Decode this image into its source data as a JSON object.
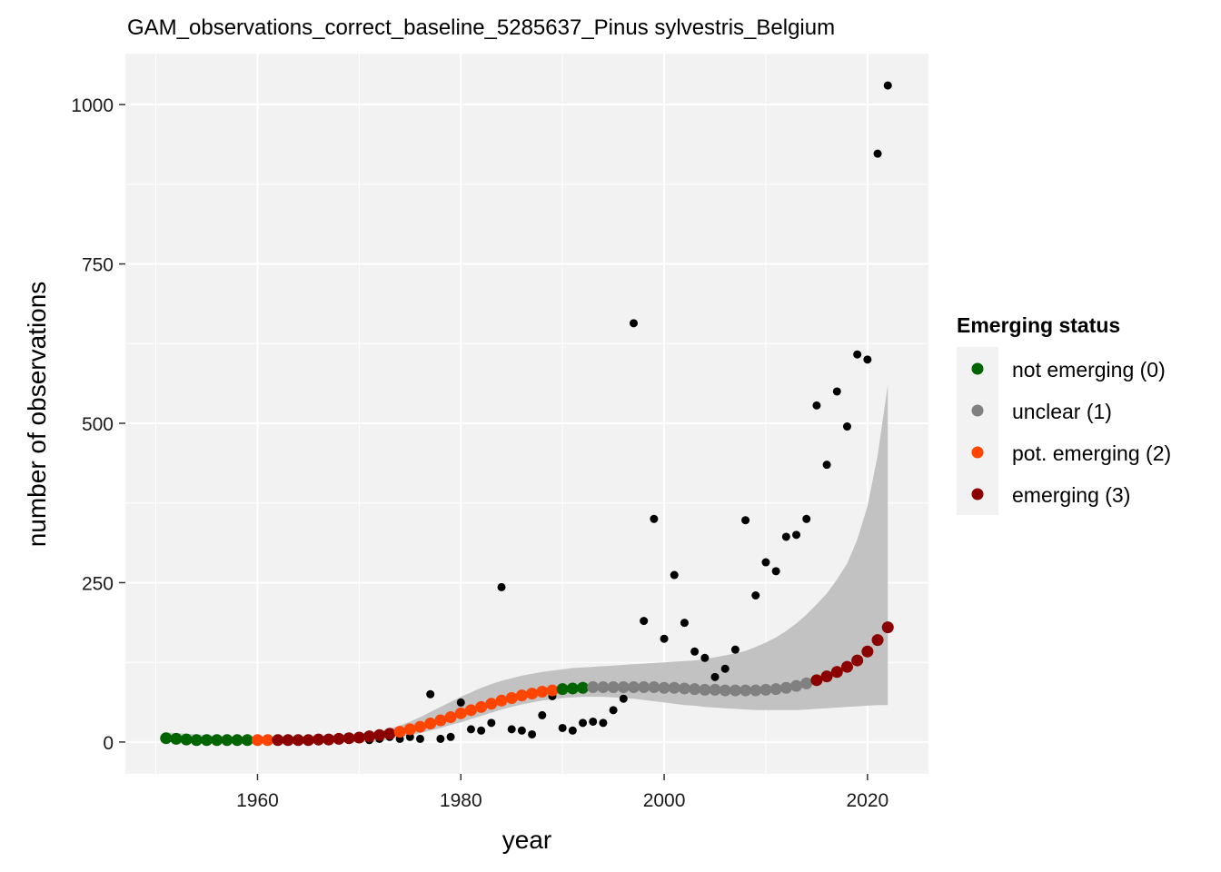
{
  "chart_data": {
    "type": "scatter",
    "title": "GAM_observations_correct_baseline_5285637_Pinus sylvestris_Belgium",
    "xlabel": "year",
    "ylabel": "number of observations",
    "xlim": [
      1947,
      2026
    ],
    "ylim": [
      -50,
      1080
    ],
    "x_ticks": [
      1960,
      1980,
      2000,
      2020
    ],
    "y_ticks": [
      0,
      250,
      500,
      750,
      1000
    ],
    "x_tick_labels": [
      "1960",
      "1980",
      "2000",
      "2020"
    ],
    "y_tick_labels": [
      "0",
      "250",
      "500",
      "750",
      "1000"
    ],
    "grid": true,
    "legend": {
      "title": "Emerging status",
      "placement": "right",
      "entries": [
        {
          "label": "not emerging (0)",
          "color": "#006400"
        },
        {
          "label": "unclear (1)",
          "color": "#808080"
        },
        {
          "label": "pot. emerging (2)",
          "color": "#ff4500"
        },
        {
          "label": "emerging (3)",
          "color": "#8b0000"
        }
      ]
    },
    "observations": {
      "color": "#000000",
      "x": [
        1951,
        1952,
        1953,
        1954,
        1955,
        1956,
        1957,
        1958,
        1959,
        1960,
        1961,
        1962,
        1963,
        1964,
        1965,
        1966,
        1967,
        1968,
        1969,
        1970,
        1971,
        1972,
        1973,
        1974,
        1975,
        1976,
        1977,
        1978,
        1979,
        1980,
        1981,
        1982,
        1983,
        1984,
        1985,
        1986,
        1987,
        1988,
        1989,
        1990,
        1991,
        1992,
        1993,
        1994,
        1995,
        1996,
        1997,
        1998,
        1999,
        2000,
        2001,
        2002,
        2003,
        2004,
        2005,
        2006,
        2007,
        2008,
        2009,
        2010,
        2011,
        2012,
        2013,
        2014,
        2015,
        2016,
        2017,
        2018,
        2019,
        2020,
        2021,
        2022
      ],
      "y": [
        5,
        3,
        2,
        1,
        1,
        2,
        1,
        1,
        1,
        2,
        2,
        1,
        2,
        2,
        2,
        1,
        3,
        3,
        5,
        5,
        3,
        5,
        8,
        5,
        8,
        5,
        75,
        5,
        8,
        62,
        20,
        18,
        30,
        243,
        20,
        18,
        12,
        42,
        72,
        22,
        18,
        30,
        32,
        30,
        50,
        68,
        657,
        190,
        350,
        162,
        262,
        187,
        142,
        132,
        102,
        115,
        145,
        348,
        230,
        282,
        268,
        322,
        325,
        350,
        528,
        435,
        550,
        495,
        608,
        600,
        923,
        1030
      ]
    },
    "fit": {
      "x": [
        1951,
        1952,
        1953,
        1954,
        1955,
        1956,
        1957,
        1958,
        1959,
        1960,
        1961,
        1962,
        1963,
        1964,
        1965,
        1966,
        1967,
        1968,
        1969,
        1970,
        1971,
        1972,
        1973,
        1974,
        1975,
        1976,
        1977,
        1978,
        1979,
        1980,
        1981,
        1982,
        1983,
        1984,
        1985,
        1986,
        1987,
        1988,
        1989,
        1990,
        1991,
        1992,
        1993,
        1994,
        1995,
        1996,
        1997,
        1998,
        1999,
        2000,
        2001,
        2002,
        2003,
        2004,
        2005,
        2006,
        2007,
        2008,
        2009,
        2010,
        2011,
        2012,
        2013,
        2014,
        2015,
        2016,
        2017,
        2018,
        2019,
        2020,
        2021,
        2022
      ],
      "y": [
        6,
        5,
        4,
        3,
        3,
        3,
        3,
        3,
        3,
        3,
        3,
        3,
        3,
        3,
        3,
        4,
        4,
        5,
        6,
        7,
        9,
        11,
        13,
        16,
        20,
        24,
        29,
        34,
        39,
        45,
        50,
        55,
        60,
        65,
        69,
        73,
        76,
        79,
        81,
        83,
        84,
        85,
        86,
        86,
        86,
        86,
        86,
        86,
        86,
        85,
        85,
        84,
        83,
        82,
        82,
        81,
        81,
        81,
        81,
        82,
        83,
        85,
        88,
        92,
        97,
        103,
        110,
        118,
        128,
        142,
        160,
        180
      ],
      "lower": [
        0,
        0,
        0,
        0,
        0,
        0,
        0,
        0,
        0,
        0,
        0,
        0,
        0,
        0,
        0,
        0,
        0,
        0,
        0,
        0,
        0,
        0,
        5,
        8,
        11,
        14,
        18,
        22,
        27,
        31,
        36,
        41,
        46,
        51,
        55,
        59,
        62,
        65,
        67,
        69,
        70,
        71,
        71,
        71,
        70,
        69,
        68,
        66,
        64,
        62,
        60,
        58,
        57,
        55,
        54,
        53,
        52,
        51,
        50,
        50,
        50,
        50,
        50,
        51,
        52,
        53,
        54,
        55,
        56,
        57,
        58,
        58
      ],
      "upper": [
        15,
        14,
        13,
        12,
        11,
        10,
        9,
        9,
        9,
        9,
        9,
        9,
        9,
        9,
        9,
        10,
        10,
        11,
        12,
        13,
        15,
        17,
        21,
        26,
        32,
        39,
        47,
        55,
        63,
        71,
        78,
        85,
        91,
        96,
        100,
        104,
        107,
        110,
        112,
        114,
        116,
        117,
        118,
        119,
        120,
        121,
        122,
        123,
        124,
        125,
        126,
        127,
        128,
        130,
        133,
        136,
        139,
        143,
        149,
        156,
        164,
        174,
        186,
        200,
        216,
        233,
        255,
        280,
        318,
        370,
        450,
        560
      ],
      "status": [
        0,
        0,
        0,
        0,
        0,
        0,
        0,
        0,
        0,
        2,
        2,
        3,
        3,
        3,
        3,
        3,
        3,
        3,
        3,
        3,
        3,
        3,
        3,
        2,
        2,
        2,
        2,
        2,
        2,
        2,
        2,
        2,
        2,
        2,
        2,
        2,
        2,
        2,
        2,
        0,
        0,
        0,
        1,
        1,
        1,
        1,
        1,
        1,
        1,
        1,
        1,
        1,
        1,
        1,
        1,
        1,
        1,
        1,
        1,
        1,
        1,
        1,
        1,
        1,
        3,
        3,
        3,
        3,
        3,
        3,
        3,
        3
      ]
    }
  }
}
